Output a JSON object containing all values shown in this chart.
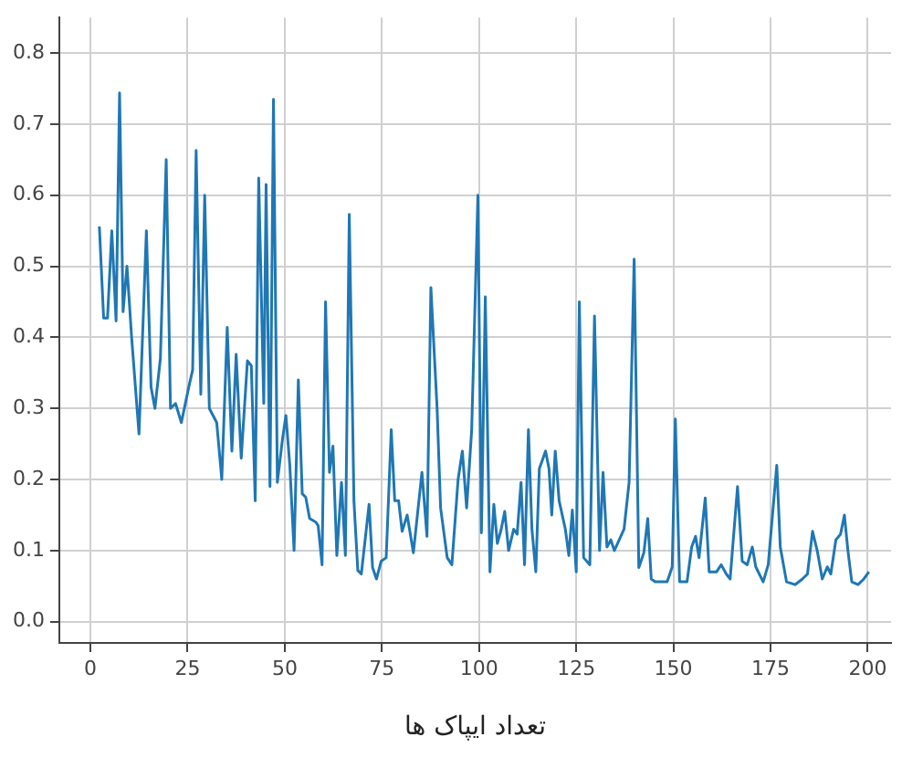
{
  "chart_data": {
    "type": "line",
    "xlabel": "تعداد ایپاک ها",
    "x": [
      2.3,
      3.4,
      4.4,
      5.5,
      6.6,
      7.5,
      8.4,
      9.4,
      10.6,
      12.5,
      14.4,
      15.6,
      16.6,
      18,
      19.5,
      20.6,
      21.9,
      23.4,
      25.3,
      26.3,
      27.2,
      28.4,
      29.4,
      30.6,
      32.5,
      33.8,
      35.2,
      36.4,
      37.5,
      38.8,
      40.4,
      41.4,
      42.4,
      43.3,
      44.6,
      45.2,
      46.2,
      47.1,
      48.1,
      49.4,
      50.3,
      51.3,
      52.4,
      53.5,
      54.5,
      55.4,
      56.4,
      58,
      58.6,
      59.6,
      60.5,
      61.5,
      62.4,
      63.4,
      64.6,
      65.6,
      66.6,
      67.8,
      68.8,
      69.7,
      71.7,
      72.6,
      73.6,
      74.8,
      76.1,
      77.4,
      78.3,
      79.3,
      80.2,
      81.5,
      83.1,
      85.3,
      86.6,
      87.6,
      89.2,
      90.1,
      91.8,
      93,
      94.6,
      95.7,
      96.8,
      98.1,
      99.7,
      100.6,
      101.6,
      102.8,
      103.8,
      104.7,
      105.7,
      106.6,
      107.6,
      108.9,
      109.8,
      110.8,
      111.7,
      112.7,
      113.6,
      114.6,
      115.5,
      117.1,
      118,
      118.7,
      119.6,
      120.6,
      122.2,
      123.1,
      124,
      125,
      125.8,
      126.9,
      128.5,
      129.7,
      131,
      131.9,
      132.9,
      133.9,
      134.8,
      137.3,
      138.6,
      139.9,
      141.1,
      142.4,
      143.4,
      144.3,
      145.3,
      148.4,
      149.7,
      150.5,
      151.6,
      153.5,
      154.7,
      155.7,
      156.6,
      158.2,
      159.2,
      161.1,
      162.3,
      163.6,
      164.6,
      166.5,
      167.7,
      169,
      170.3,
      171.2,
      173.1,
      174.4,
      176.6,
      177.5,
      179.1,
      181.3,
      183.2,
      184.5,
      185.8,
      187,
      188.3,
      189.6,
      190.5,
      191.8,
      193,
      194,
      194.9,
      195.9,
      197.5,
      199,
      200.3
    ],
    "series": [
      {
        "color": "#1f77b4",
        "values": [
          0.556,
          0.427,
          0.427,
          0.55,
          0.423,
          0.744,
          0.436,
          0.5,
          0.4,
          0.264,
          0.55,
          0.33,
          0.3,
          0.37,
          0.65,
          0.3,
          0.307,
          0.28,
          0.33,
          0.354,
          0.663,
          0.32,
          0.6,
          0.3,
          0.28,
          0.2,
          0.414,
          0.24,
          0.376,
          0.23,
          0.367,
          0.36,
          0.17,
          0.624,
          0.307,
          0.615,
          0.19,
          0.735,
          0.196,
          0.256,
          0.29,
          0.22,
          0.1,
          0.34,
          0.18,
          0.175,
          0.145,
          0.14,
          0.135,
          0.08,
          0.45,
          0.21,
          0.247,
          0.093,
          0.196,
          0.093,
          0.573,
          0.17,
          0.072,
          0.067,
          0.165,
          0.076,
          0.06,
          0.085,
          0.09,
          0.27,
          0.17,
          0.17,
          0.127,
          0.15,
          0.097,
          0.21,
          0.12,
          0.47,
          0.3,
          0.16,
          0.09,
          0.08,
          0.2,
          0.24,
          0.16,
          0.27,
          0.6,
          0.125,
          0.457,
          0.07,
          0.165,
          0.11,
          0.13,
          0.155,
          0.1,
          0.13,
          0.123,
          0.196,
          0.08,
          0.27,
          0.13,
          0.07,
          0.215,
          0.24,
          0.215,
          0.15,
          0.24,
          0.17,
          0.13,
          0.093,
          0.157,
          0.07,
          0.45,
          0.09,
          0.08,
          0.43,
          0.1,
          0.21,
          0.105,
          0.115,
          0.1,
          0.13,
          0.196,
          0.51,
          0.076,
          0.097,
          0.145,
          0.06,
          0.056,
          0.056,
          0.077,
          0.285,
          0.056,
          0.056,
          0.105,
          0.12,
          0.09,
          0.174,
          0.07,
          0.07,
          0.08,
          0.067,
          0.06,
          0.19,
          0.085,
          0.08,
          0.105,
          0.077,
          0.056,
          0.08,
          0.22,
          0.105,
          0.056,
          0.052,
          0.06,
          0.067,
          0.127,
          0.1,
          0.06,
          0.077,
          0.067,
          0.115,
          0.123,
          0.15,
          0.1,
          0.056,
          0.052,
          0.06,
          0.07
        ]
      }
    ],
    "xlim": [
      -8,
      206
    ],
    "xticks": [
      0,
      25,
      50,
      75,
      100,
      125,
      150,
      175,
      200
    ],
    "ylim": [
      -0.03,
      0.85
    ],
    "yticks": [
      {
        "value": 0,
        "label": "0.0"
      },
      0.1,
      0.2,
      0.3,
      0.4,
      0.5,
      0.6,
      0.7,
      0.8
    ],
    "grid": true,
    "legend": false,
    "marker": "none",
    "line_style": "solid"
  }
}
